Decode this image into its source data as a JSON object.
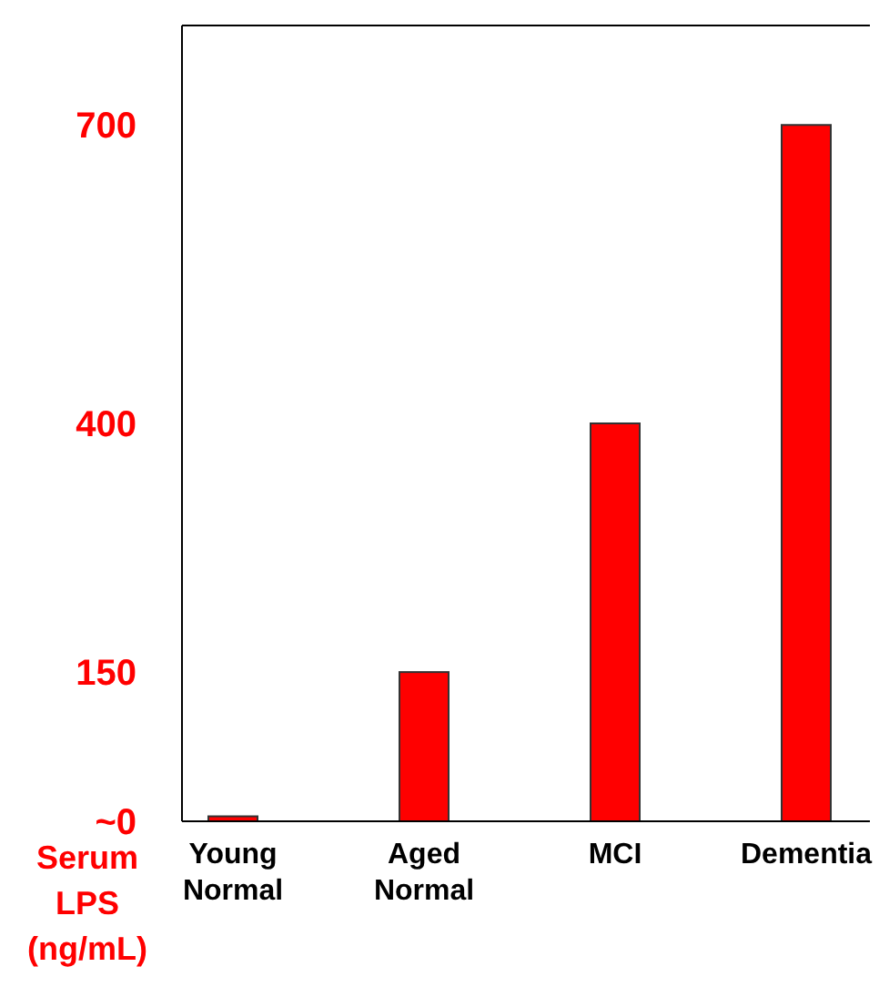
{
  "chart_data": {
    "type": "bar",
    "ylabel": "Serum LPS (ng/mL)",
    "categories": [
      "Young Normal",
      "Aged Normal",
      "MCI",
      "Dementia"
    ],
    "values": [
      5,
      150,
      400,
      700
    ],
    "color": "#ff0000",
    "ylim": [
      0,
      800
    ],
    "yticks": [
      {
        "value": 0,
        "label": "~0"
      },
      150,
      400,
      700
    ],
    "grid": false
  }
}
